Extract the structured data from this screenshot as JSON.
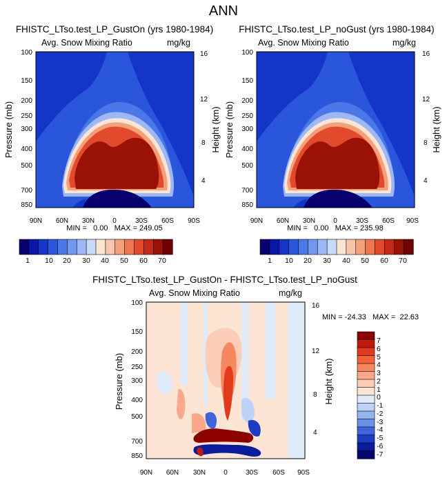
{
  "figure_title": "ANN",
  "chart_data": [
    {
      "type": "heatmap",
      "title": "FHISTC_LTso.test_LP_GustOn (yrs 1980-1984)",
      "left_string": "Avg. Snow Mixing Ratio",
      "right_string": "mg/kg",
      "xlabel": "",
      "ylabel": "Pressure (mb)",
      "ylabel_right": "Height (km)",
      "x_ticks": [
        "90N",
        "60N",
        "30N",
        "0",
        "30S",
        "60S",
        "90S"
      ],
      "y_ticks": [
        "100",
        "150",
        "200",
        "250",
        "300",
        "400",
        "500",
        "700",
        "850"
      ],
      "y_ticks_right": [
        "16",
        "12",
        "8",
        "4"
      ],
      "stats": "MIN =   0.00   MAX = 249.05",
      "min": 0.0,
      "max": 249.05,
      "colorbar_labels": [
        "1",
        "10",
        "20",
        "30",
        "40",
        "50",
        "60",
        "70"
      ],
      "colorbar_levels": 15
    },
    {
      "type": "heatmap",
      "title": "FHISTC_LTso.test_LP_noGust (yrs 1980-1984)",
      "left_string": "Avg. Snow Mixing Ratio",
      "right_string": "mg/kg",
      "xlabel": "",
      "ylabel": "Pressure (mb)",
      "ylabel_right": "Height (km)",
      "x_ticks": [
        "90N",
        "60N",
        "30N",
        "0",
        "30S",
        "60S",
        "90S"
      ],
      "y_ticks": [
        "100",
        "150",
        "200",
        "250",
        "300",
        "400",
        "500",
        "700",
        "850"
      ],
      "y_ticks_right": [
        "16",
        "12",
        "8",
        "4"
      ],
      "stats": "MIN =   0.00   MAX = 235.98",
      "min": 0.0,
      "max": 235.98,
      "colorbar_labels": [
        "1",
        "10",
        "20",
        "30",
        "40",
        "50",
        "60",
        "70"
      ],
      "colorbar_levels": 15
    },
    {
      "type": "heatmap",
      "title": "FHISTC_LTso.test_LP_GustOn - FHISTC_LTso.test_LP_noGust",
      "left_string": "Avg. Snow Mixing Ratio",
      "right_string": "mg/kg",
      "xlabel": "",
      "ylabel": "Pressure (mb)",
      "ylabel_right": "Height (km)",
      "x_ticks": [
        "90N",
        "60N",
        "30N",
        "0",
        "30S",
        "60S",
        "90S"
      ],
      "y_ticks": [
        "100",
        "150",
        "200",
        "250",
        "300",
        "400",
        "500",
        "700",
        "850"
      ],
      "y_ticks_right": [
        "16",
        "12",
        "8",
        "4"
      ],
      "stats": "MIN = -24.33   MAX =  22.63",
      "min": -24.33,
      "max": 22.63,
      "colorbar_labels": [
        "7",
        "6",
        "5",
        "4",
        "3",
        "2",
        "1",
        "0",
        "-1",
        "-2",
        "-3",
        "-4",
        "-5",
        "-6",
        "-7"
      ],
      "colorbar_levels": 16
    }
  ],
  "colors": {
    "seq": [
      "#08006e",
      "#0a16a8",
      "#1435c8",
      "#2a56dc",
      "#4a78e8",
      "#7396ee",
      "#9db8f4",
      "#c8daf8",
      "#fbe6d6",
      "#f7c6aa",
      "#f4a07a",
      "#ee7650",
      "#e24a2c",
      "#c52a18",
      "#9a1108",
      "#6e0000"
    ],
    "div": [
      "#8c0000",
      "#c11a0a",
      "#e23a1c",
      "#f06238",
      "#f5885e",
      "#f9a98a",
      "#fbcdb6",
      "#fde5d5",
      "#dfeafa",
      "#bcd2f6",
      "#94b4f0",
      "#6a90e8",
      "#3f64dc",
      "#1e3cc2",
      "#0a1c9c",
      "#04066e"
    ]
  }
}
